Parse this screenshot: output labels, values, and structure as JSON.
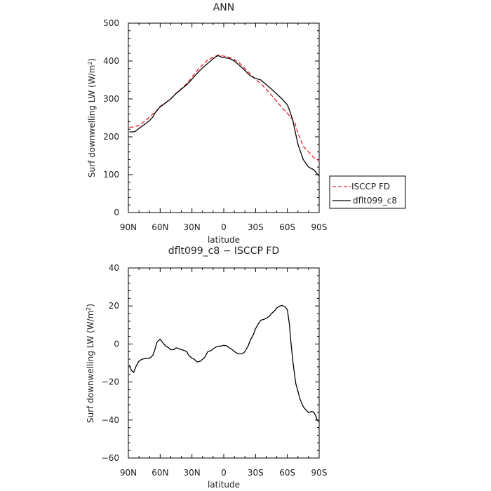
{
  "chart_data": [
    {
      "type": "line",
      "title": "ANN",
      "xlabel": "latitude",
      "ylabel_main": "Surf downwelling LW (W/m",
      "ylabel_sup": "2",
      "ylabel_close": ")",
      "xlim": [
        -90,
        90
      ],
      "ylim": [
        0,
        500
      ],
      "xticks": [
        -90,
        -60,
        -30,
        0,
        30,
        60,
        90
      ],
      "xtick_labels": [
        "90N",
        "60N",
        "30N",
        "0",
        "30S",
        "60S",
        "90S"
      ],
      "yticks": [
        0,
        100,
        200,
        300,
        400,
        500
      ],
      "ytick_labels": [
        "0",
        "100",
        "200",
        "300",
        "400",
        "500"
      ],
      "legend_position": "right",
      "series": [
        {
          "name": "ISCCP FD",
          "color": "#e02020",
          "style": "dashed",
          "x": [
            -89,
            -85,
            -80,
            -75,
            -70,
            -65,
            -60,
            -55,
            -50,
            -45,
            -40,
            -35,
            -30,
            -25,
            -20,
            -15,
            -10,
            -5,
            0,
            5,
            10,
            15,
            20,
            25,
            30,
            35,
            40,
            45,
            50,
            55,
            60,
            65,
            67,
            70,
            75,
            80,
            85,
            90
          ],
          "y": [
            225,
            226,
            230,
            240,
            252,
            265,
            278,
            290,
            300,
            315,
            327,
            340,
            357,
            375,
            390,
            403,
            410,
            416,
            413,
            410,
            404,
            394,
            380,
            366,
            352,
            340,
            326,
            310,
            293,
            277,
            262,
            245,
            238,
            210,
            175,
            160,
            145,
            137
          ]
        },
        {
          "name": "dflt099_c8",
          "color": "#000000",
          "style": "solid",
          "x": [
            -89,
            -85,
            -83,
            -80,
            -75,
            -70,
            -67,
            -65,
            -60,
            -55,
            -50,
            -45,
            -40,
            -35,
            -30,
            -25,
            -20,
            -15,
            -10,
            -7,
            -5,
            -2,
            0,
            5,
            10,
            15,
            20,
            25,
            30,
            35,
            40,
            45,
            50,
            55,
            60,
            62,
            65,
            70,
            75,
            80,
            85,
            90
          ],
          "y": [
            213,
            213,
            215,
            222,
            232,
            243,
            252,
            262,
            280,
            289,
            300,
            314,
            326,
            337,
            352,
            368,
            382,
            394,
            406,
            412,
            414,
            410,
            409,
            407,
            400,
            388,
            375,
            361,
            354,
            350,
            338,
            326,
            313,
            300,
            284,
            270,
            245,
            180,
            140,
            120,
            113,
            96
          ]
        }
      ]
    },
    {
      "type": "line",
      "title": "dflt099_c8 − ISCCP FD",
      "xlabel": "latitude",
      "ylabel_main": "Surf downwelling LW (W/m",
      "ylabel_sup": "2",
      "ylabel_close": ")",
      "xlim": [
        -90,
        90
      ],
      "ylim": [
        -60,
        40
      ],
      "xticks": [
        -90,
        -60,
        -30,
        0,
        30,
        60,
        90
      ],
      "xtick_labels": [
        "90N",
        "60N",
        "30N",
        "0",
        "30S",
        "60S",
        "90S"
      ],
      "yticks": [
        -60,
        -40,
        -20,
        0,
        20,
        40
      ],
      "ytick_labels": [
        "−60",
        "−40",
        "−20",
        "0",
        "20",
        "40"
      ],
      "series": [
        {
          "name": "",
          "color": "#000000",
          "style": "solid",
          "x": [
            -89,
            -87,
            -85,
            -83,
            -80,
            -77,
            -73,
            -70,
            -67,
            -65,
            -63,
            -60,
            -58,
            -55,
            -52,
            -50,
            -47,
            -45,
            -42,
            -40,
            -37,
            -35,
            -33,
            -30,
            -28,
            -25,
            -22,
            -20,
            -18,
            -15,
            -12,
            -10,
            -7,
            -5,
            -2,
            0,
            3,
            5,
            8,
            10,
            13,
            15,
            18,
            20,
            23,
            25,
            28,
            30,
            33,
            35,
            38,
            40,
            43,
            45,
            48,
            50,
            53,
            55,
            58,
            60,
            62,
            63,
            65,
            67,
            68,
            70,
            72,
            75,
            78,
            80,
            83,
            85,
            87,
            88,
            90
          ],
          "y": [
            -11,
            -14,
            -15,
            -12,
            -9,
            -8,
            -7.5,
            -7.5,
            -6,
            -3,
            1,
            2.5,
            1,
            -1,
            -2,
            -3,
            -3,
            -2,
            -2.5,
            -3,
            -3.5,
            -4,
            -6,
            -7.5,
            -8,
            -9.5,
            -9,
            -8,
            -7,
            -4,
            -3.5,
            -2.5,
            -1.5,
            -1.2,
            -1,
            -0.7,
            -1,
            -2,
            -3,
            -4,
            -5,
            -5.2,
            -5,
            -4,
            -1,
            2,
            5,
            8,
            11,
            12.5,
            13,
            13.5,
            14.5,
            16,
            17.5,
            19,
            20,
            20.3,
            19.5,
            18,
            10,
            3,
            -8,
            -17,
            -21,
            -25,
            -29,
            -33,
            -35,
            -36,
            -35.5,
            -36,
            -38,
            -40,
            -41
          ]
        }
      ]
    }
  ]
}
